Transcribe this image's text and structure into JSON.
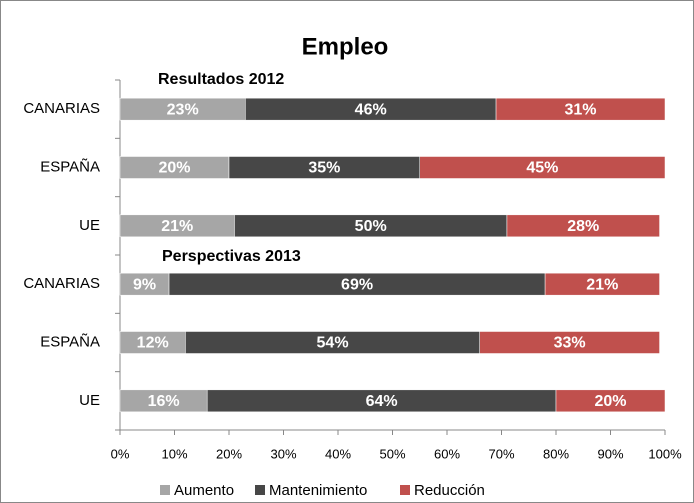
{
  "chart_data": {
    "type": "stacked_barh",
    "title": "Empleo",
    "annotations": [
      "Resultados 2012",
      "Perspectivas 2013"
    ],
    "categories": [
      "CANARIAS",
      "ESPAÑA",
      "UE",
      "CANARIAS",
      "ESPAÑA",
      "UE"
    ],
    "series": [
      {
        "name": "Aumento",
        "color": "#a6a6a6",
        "values": [
          23,
          20,
          21,
          9,
          12,
          16
        ],
        "value_labels": [
          "23%",
          "20%",
          "21%",
          "9%",
          "12%",
          "16%"
        ]
      },
      {
        "name": "Mantenimiento",
        "color": "#474747",
        "values": [
          46,
          35,
          50,
          69,
          54,
          64
        ],
        "value_labels": [
          "46%",
          "35%",
          "50%",
          "69%",
          "54%",
          "64%"
        ]
      },
      {
        "name": "Reducción",
        "color": "#c0504d",
        "values": [
          31,
          45,
          28,
          21,
          33,
          20
        ],
        "value_labels": [
          "31%",
          "45%",
          "28%",
          "21%",
          "33%",
          "20%"
        ]
      }
    ],
    "xlim": [
      0,
      100
    ],
    "xticks": [
      {
        "value": 0,
        "label": "0%"
      },
      {
        "value": 10,
        "label": "10%"
      },
      {
        "value": 20,
        "label": "20%"
      },
      {
        "value": 30,
        "label": "30%"
      },
      {
        "value": 40,
        "label": "40%"
      },
      {
        "value": 50,
        "label": "50%"
      },
      {
        "value": 60,
        "label": "60%"
      },
      {
        "value": 70,
        "label": "70%"
      },
      {
        "value": 80,
        "label": "80%"
      },
      {
        "value": 90,
        "label": "90%"
      },
      {
        "value": 100,
        "label": "100%"
      }
    ],
    "legend": "bottom"
  }
}
